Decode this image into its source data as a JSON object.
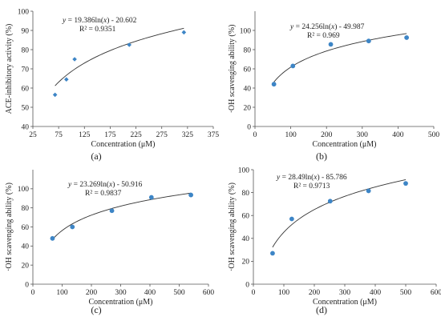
{
  "chart_data": [
    {
      "type": "scatter",
      "panel_label": "(a)",
      "xlabel": "Concentration (μM)",
      "ylabel": "ACE-inhibitory activity (%)",
      "xlim": [
        25,
        375
      ],
      "ylim": [
        40,
        100
      ],
      "xticks": [
        25,
        75,
        125,
        175,
        225,
        275,
        325,
        375
      ],
      "yticks": [
        40,
        50,
        60,
        70,
        80,
        90,
        100
      ],
      "marker": "diamond",
      "points": [
        {
          "x": 68,
          "y": 56.5
        },
        {
          "x": 90,
          "y": 64.5
        },
        {
          "x": 106,
          "y": 75
        },
        {
          "x": 212,
          "y": 82.5
        },
        {
          "x": 318,
          "y": 89
        }
      ],
      "fit": {
        "type": "log",
        "a": 19.386,
        "b": -20.602,
        "x_from": 68,
        "x_to": 318
      },
      "equation": "y = 19.386ln(x) - 20.602",
      "r2": "R² = 0.9351",
      "marker_color": "#3d85c6"
    },
    {
      "type": "scatter",
      "panel_label": "(b)",
      "xlabel": "Concentration (μM)",
      "ylabel": "·OH scavenging ability (%)",
      "xlim": [
        0,
        500
      ],
      "ylim": [
        0,
        120
      ],
      "xticks": [
        0,
        100,
        200,
        300,
        400,
        500
      ],
      "yticks": [
        0,
        20,
        40,
        60,
        80,
        100
      ],
      "marker": "circle",
      "points": [
        {
          "x": 53,
          "y": 44
        },
        {
          "x": 106,
          "y": 63
        },
        {
          "x": 212,
          "y": 85.5
        },
        {
          "x": 318,
          "y": 89
        },
        {
          "x": 424,
          "y": 92.5
        }
      ],
      "fit": {
        "type": "log",
        "a": 24.256,
        "b": -49.987,
        "x_from": 53,
        "x_to": 424
      },
      "equation": "y = 24.256ln(x) - 49.987",
      "r2": "R² = 0.969",
      "marker_color": "#3d85c6"
    },
    {
      "type": "scatter",
      "panel_label": "(c)",
      "xlabel": "Concentration (μM)",
      "ylabel": "·OH scavenging ability (%)",
      "xlim": [
        0,
        600
      ],
      "ylim": [
        0,
        120
      ],
      "xticks": [
        0,
        100,
        200,
        300,
        400,
        500,
        600
      ],
      "yticks": [
        0,
        20,
        40,
        60,
        80,
        100
      ],
      "marker": "circle",
      "points": [
        {
          "x": 67,
          "y": 48
        },
        {
          "x": 135,
          "y": 60
        },
        {
          "x": 270,
          "y": 77
        },
        {
          "x": 405,
          "y": 91
        },
        {
          "x": 540,
          "y": 93.5
        }
      ],
      "fit": {
        "type": "log",
        "a": 23.269,
        "b": -50.916,
        "x_from": 67,
        "x_to": 540
      },
      "equation": "y = 23.269ln(x) - 50.916",
      "r2": "R² = 0.9837",
      "marker_color": "#3d85c6"
    },
    {
      "type": "scatter",
      "panel_label": "(d)",
      "xlabel": "Concentration (μM)",
      "ylabel": "·OH scavenging ability (%)",
      "xlim": [
        0,
        600
      ],
      "ylim": [
        0,
        100
      ],
      "xticks": [
        0,
        100,
        200,
        300,
        400,
        500,
        600
      ],
      "yticks": [
        0,
        20,
        40,
        60,
        80,
        100
      ],
      "marker": "circle",
      "points": [
        {
          "x": 63,
          "y": 27
        },
        {
          "x": 126,
          "y": 57
        },
        {
          "x": 252,
          "y": 72.5
        },
        {
          "x": 378,
          "y": 81.5
        },
        {
          "x": 500,
          "y": 88
        }
      ],
      "fit": {
        "type": "log",
        "a": 28.49,
        "b": -85.786,
        "x_from": 63,
        "x_to": 500
      },
      "equation": "y = 28.49ln(x) - 85.786",
      "r2": "R² = 0.9713",
      "marker_color": "#3d85c6"
    }
  ]
}
